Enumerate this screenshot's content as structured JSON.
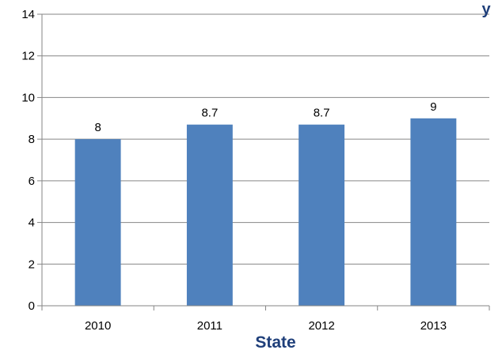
{
  "chart_data": {
    "type": "bar",
    "categories": [
      "2010",
      "2011",
      "2012",
      "2013"
    ],
    "values": [
      8,
      8.7,
      8.7,
      9
    ],
    "data_labels": [
      "8",
      "8.7",
      "8.7",
      "9"
    ],
    "title": "",
    "xlabel": "State",
    "ylabel": "",
    "ylim": [
      0,
      14
    ],
    "yticks": [
      0,
      2,
      4,
      6,
      8,
      10,
      12,
      14
    ],
    "grid": true,
    "legend": "none",
    "bar_color": "#4F81BD",
    "xlabel_color": "#1F3F7A"
  },
  "title_fragment": "y"
}
